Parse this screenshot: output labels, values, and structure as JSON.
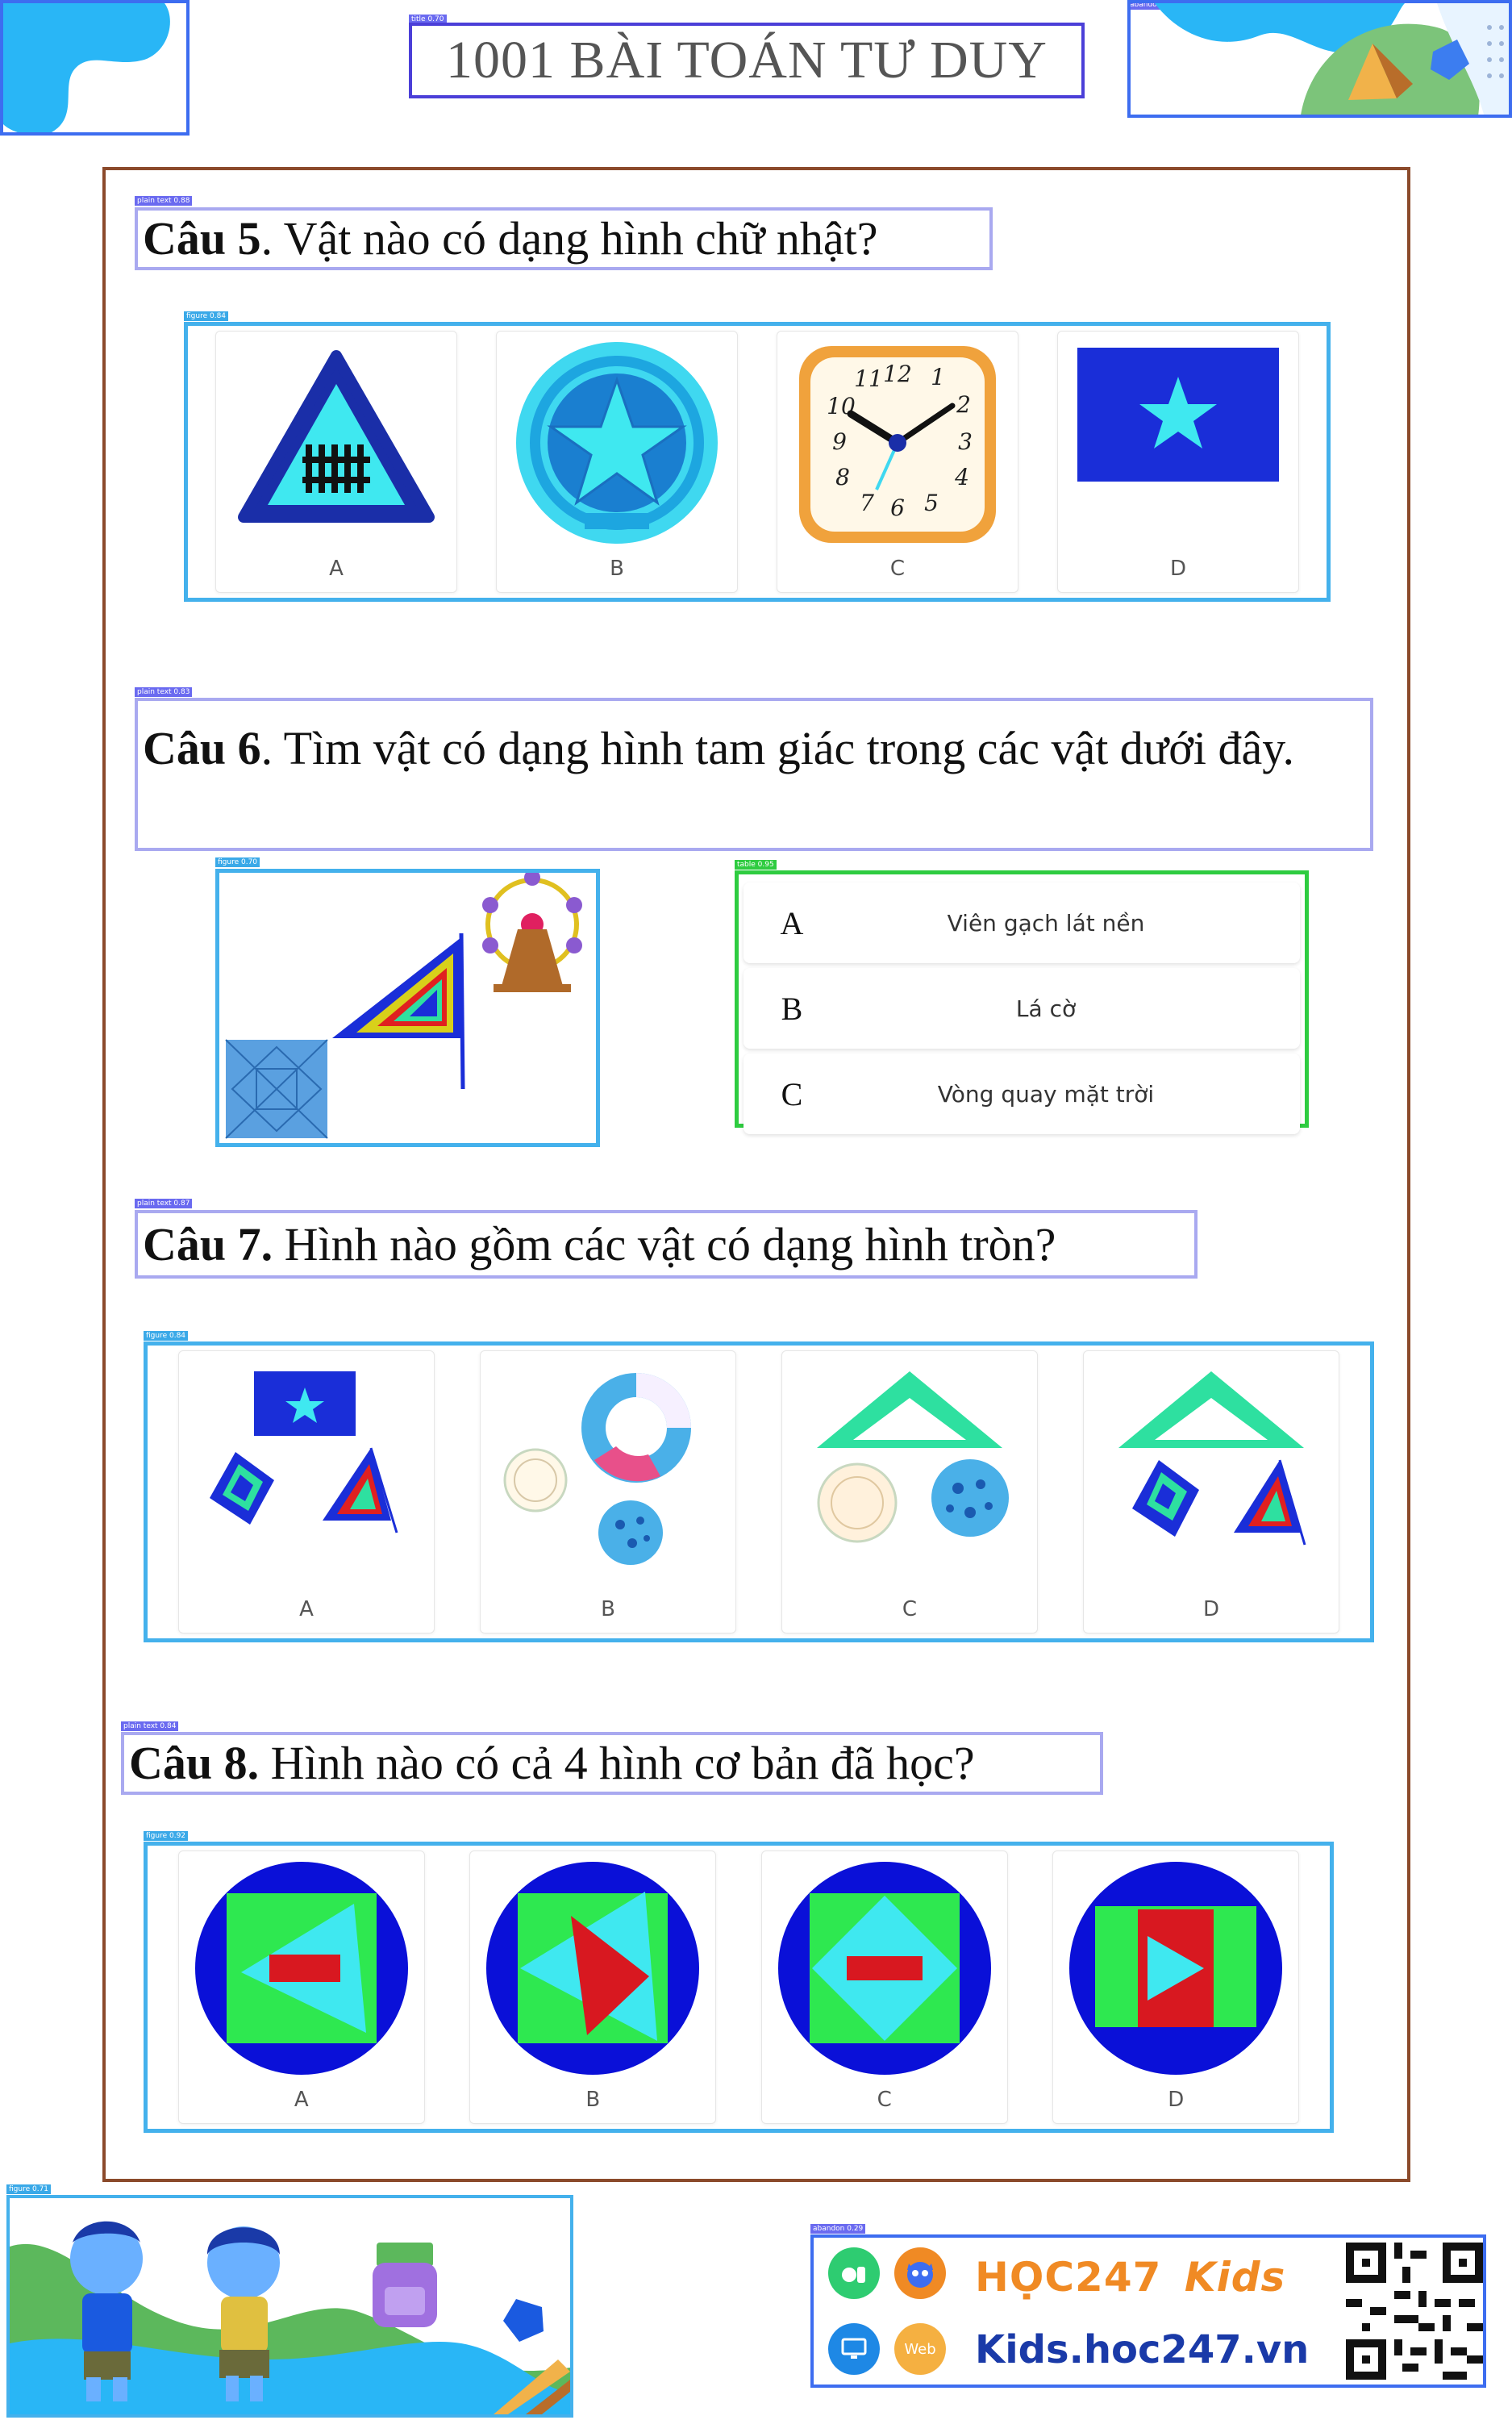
{
  "header": {
    "title": "1001 BÀI TOÁN TƯ DUY"
  },
  "questions": [
    {
      "number": "Câu 5",
      "text": ". Vật nào có dạng hình chữ nhật?",
      "options": [
        {
          "label": "A",
          "icon": "railway-crossing-sign-icon"
        },
        {
          "label": "B",
          "icon": "national-emblem-icon"
        },
        {
          "label": "C",
          "icon": "alarm-clock-icon"
        },
        {
          "label": "D",
          "icon": "flag-icon"
        }
      ]
    },
    {
      "number": "Câu 6",
      "text": ". Tìm vật có dạng hình tam giác trong các vật dưới đây.",
      "choices": [
        {
          "letter": "A",
          "text": "Viên gạch lát nền"
        },
        {
          "letter": "B",
          "text": "Lá cờ"
        },
        {
          "letter": "C",
          "text": "Vòng quay mặt trời"
        }
      ]
    },
    {
      "number": "Câu 7.",
      "text": " Hình nào gồm các vật có dạng hình tròn?",
      "options": [
        {
          "label": "A"
        },
        {
          "label": "B"
        },
        {
          "label": "C"
        },
        {
          "label": "D"
        }
      ]
    },
    {
      "number": "Câu 8.",
      "text": " Hình nào có cả 4 hình cơ bản đã học?",
      "options": [
        {
          "label": "A"
        },
        {
          "label": "B"
        },
        {
          "label": "C"
        },
        {
          "label": "D"
        }
      ]
    }
  ],
  "footer": {
    "brand": "HỌC247",
    "brand_kids": "Kids",
    "website": "Kids.hoc247.vn",
    "web_badge": "Web"
  },
  "colors": {
    "question_border": "#a9a9f0",
    "figure_border": "#44b1ec",
    "choice_border": "#2ecc40",
    "page_border": "#8b4a2b"
  }
}
